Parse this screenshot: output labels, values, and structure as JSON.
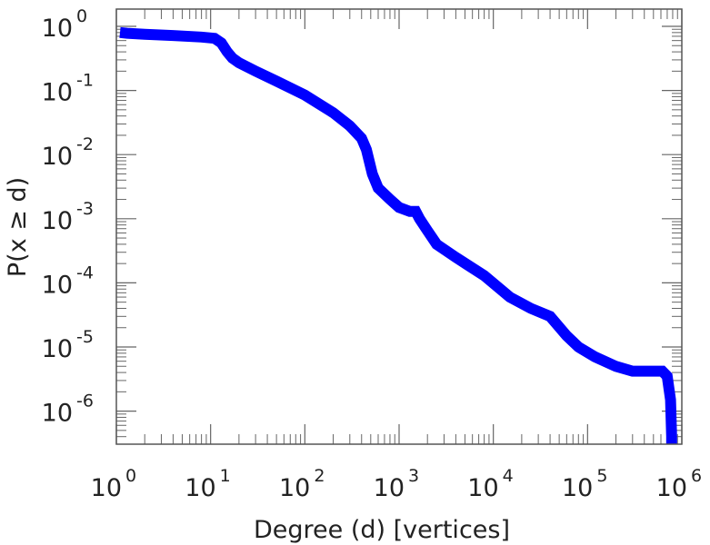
{
  "chart_data": {
    "type": "line",
    "title": "",
    "xlabel": "Degree (d) [vertices]",
    "ylabel": "P(x ≥ d)",
    "xscale": "log",
    "yscale": "log",
    "xlim": [
      1,
      1000000
    ],
    "ylim": [
      3e-07,
      1
    ],
    "grid": false,
    "x_ticks": [
      {
        "base": "10",
        "exp": "0",
        "value": 1
      },
      {
        "base": "10",
        "exp": "1",
        "value": 10
      },
      {
        "base": "10",
        "exp": "2",
        "value": 100
      },
      {
        "base": "10",
        "exp": "3",
        "value": 1000
      },
      {
        "base": "10",
        "exp": "4",
        "value": 10000
      },
      {
        "base": "10",
        "exp": "5",
        "value": 100000
      },
      {
        "base": "10",
        "exp": "6",
        "value": 1000000
      }
    ],
    "y_ticks": [
      {
        "base": "10",
        "exp": "0",
        "value": 1
      },
      {
        "base": "10",
        "exp": "-1",
        "value": 0.1
      },
      {
        "base": "10",
        "exp": "-2",
        "value": 0.01
      },
      {
        "base": "10",
        "exp": "-3",
        "value": 0.001
      },
      {
        "base": "10",
        "exp": "-4",
        "value": 0.0001
      },
      {
        "base": "10",
        "exp": "-5",
        "value": 1e-05
      },
      {
        "base": "10",
        "exp": "-6",
        "value": 1e-06
      }
    ],
    "series": [
      {
        "color": "#0000ff",
        "points": [
          [
            1,
            0.8
          ],
          [
            1.3,
            0.78
          ],
          [
            2,
            0.75
          ],
          [
            4,
            0.72
          ],
          [
            8,
            0.68
          ],
          [
            11,
            0.65
          ],
          [
            13,
            0.55
          ],
          [
            15,
            0.4
          ],
          [
            17,
            0.32
          ],
          [
            20,
            0.27
          ],
          [
            30,
            0.2
          ],
          [
            50,
            0.14
          ],
          [
            100,
            0.085
          ],
          [
            200,
            0.045
          ],
          [
            300,
            0.028
          ],
          [
            400,
            0.018
          ],
          [
            450,
            0.012
          ],
          [
            520,
            0.005
          ],
          [
            600,
            0.003
          ],
          [
            800,
            0.002
          ],
          [
            1000,
            0.0015
          ],
          [
            1300,
            0.0013
          ],
          [
            1500,
            0.0013
          ],
          [
            1650,
            0.001
          ],
          [
            2000,
            0.00065
          ],
          [
            2500,
            0.0004
          ],
          [
            4000,
            0.00025
          ],
          [
            8000,
            0.00013
          ],
          [
            15000,
            6e-05
          ],
          [
            25000,
            4e-05
          ],
          [
            40000,
            3e-05
          ],
          [
            60000,
            1.5e-05
          ],
          [
            80000,
            1e-05
          ],
          [
            120000,
            7e-06
          ],
          [
            200000,
            5e-06
          ],
          [
            300000,
            4.2e-06
          ],
          [
            500000,
            4.2e-06
          ],
          [
            620000,
            4.2e-06
          ],
          [
            700000,
            3.5e-06
          ],
          [
            760000,
            1.5e-06
          ],
          [
            780000,
            4e-07
          ],
          [
            780000,
            3e-07
          ]
        ]
      }
    ]
  }
}
